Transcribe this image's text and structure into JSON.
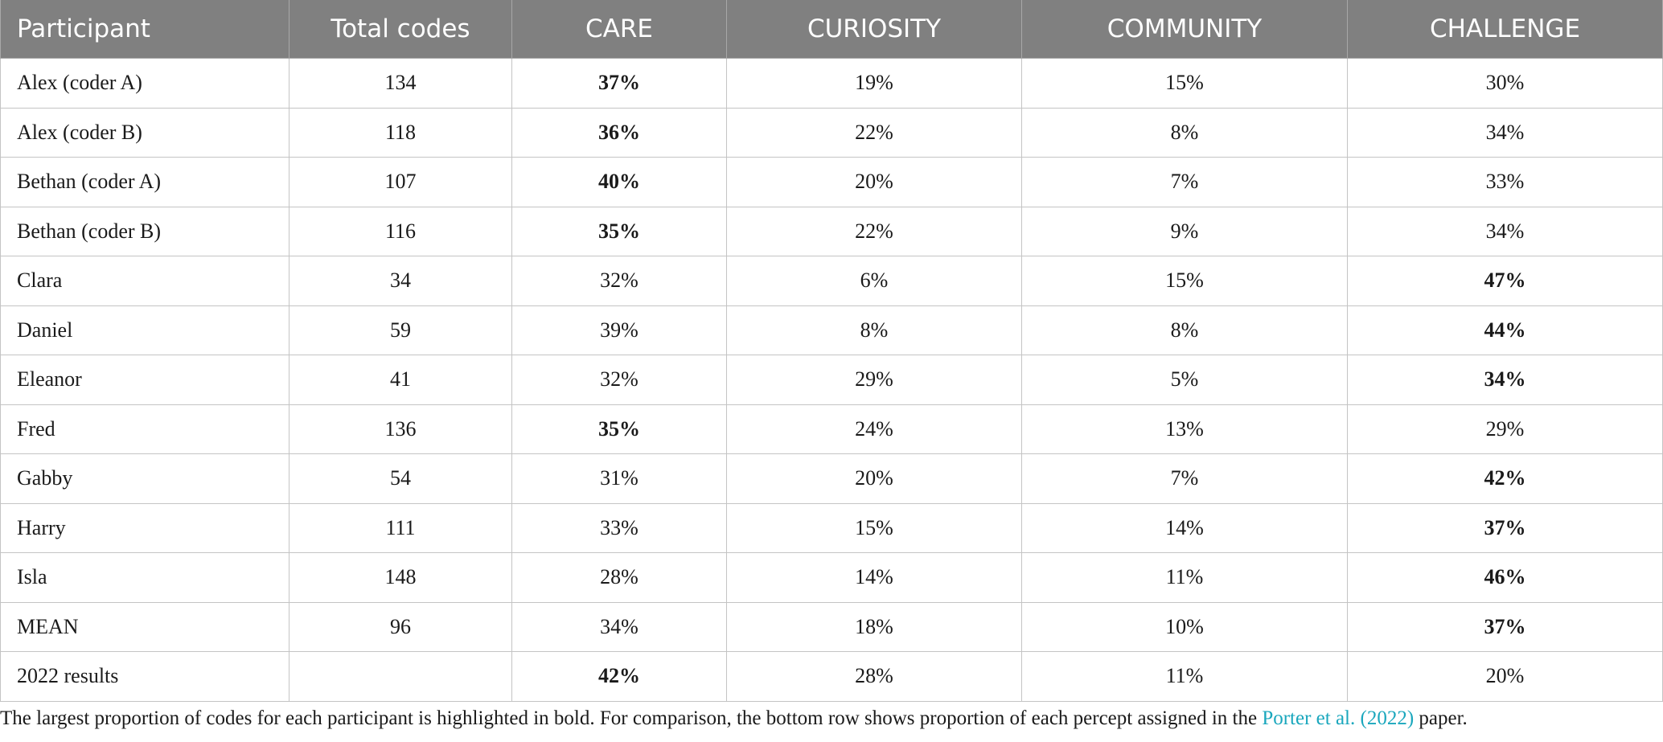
{
  "table": {
    "headers": [
      "Participant",
      "Total codes",
      "CARE",
      "CURIOSITY",
      "COMMUNITY",
      "CHALLENGE"
    ],
    "rows": [
      {
        "participant": "Alex (coder A)",
        "total": "134",
        "care": "37%",
        "curiosity": "19%",
        "community": "15%",
        "challenge": "30%",
        "bold": "care"
      },
      {
        "participant": "Alex (coder B)",
        "total": "118",
        "care": "36%",
        "curiosity": "22%",
        "community": "8%",
        "challenge": "34%",
        "bold": "care"
      },
      {
        "participant": "Bethan (coder A)",
        "total": "107",
        "care": "40%",
        "curiosity": "20%",
        "community": "7%",
        "challenge": "33%",
        "bold": "care"
      },
      {
        "participant": "Bethan (coder B)",
        "total": "116",
        "care": "35%",
        "curiosity": "22%",
        "community": "9%",
        "challenge": "34%",
        "bold": "care"
      },
      {
        "participant": "Clara",
        "total": "34",
        "care": "32%",
        "curiosity": "6%",
        "community": "15%",
        "challenge": "47%",
        "bold": "challenge"
      },
      {
        "participant": "Daniel",
        "total": "59",
        "care": "39%",
        "curiosity": "8%",
        "community": "8%",
        "challenge": "44%",
        "bold": "challenge"
      },
      {
        "participant": "Eleanor",
        "total": "41",
        "care": "32%",
        "curiosity": "29%",
        "community": "5%",
        "challenge": "34%",
        "bold": "challenge"
      },
      {
        "participant": "Fred",
        "total": "136",
        "care": "35%",
        "curiosity": "24%",
        "community": "13%",
        "challenge": "29%",
        "bold": "care"
      },
      {
        "participant": "Gabby",
        "total": "54",
        "care": "31%",
        "curiosity": "20%",
        "community": "7%",
        "challenge": "42%",
        "bold": "challenge"
      },
      {
        "participant": "Harry",
        "total": "111",
        "care": "33%",
        "curiosity": "15%",
        "community": "14%",
        "challenge": "37%",
        "bold": "challenge"
      },
      {
        "participant": "Isla",
        "total": "148",
        "care": "28%",
        "curiosity": "14%",
        "community": "11%",
        "challenge": "46%",
        "bold": "challenge"
      },
      {
        "participant": "MEAN",
        "total": "96",
        "care": "34%",
        "curiosity": "18%",
        "community": "10%",
        "challenge": "37%",
        "bold": "challenge"
      },
      {
        "participant": "2022 results",
        "total": "",
        "care": "42%",
        "curiosity": "28%",
        "community": "11%",
        "challenge": "20%",
        "bold": "care"
      }
    ]
  },
  "caption": {
    "text_before": "The largest proportion of codes for each participant is highlighted in bold. For comparison, the bottom row shows proportion of each percept assigned in the ",
    "link": "Porter et al. (2022)",
    "text_after": " paper."
  },
  "colors": {
    "header_bg": "#808080",
    "link": "#1aa7bd"
  }
}
